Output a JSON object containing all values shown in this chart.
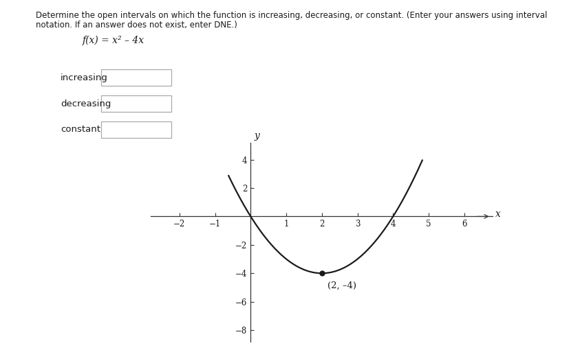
{
  "title_line1": "Determine the open intervals on which the function is increasing, decreasing, or constant. (Enter your answers using interval",
  "title_line2": "notation. If an answer does not exist, enter DNE.)",
  "function_label": "f(x) = x² – 4x",
  "labels": [
    "increasing",
    "decreasing",
    "constant"
  ],
  "xlim": [
    -2.8,
    6.8
  ],
  "ylim": [
    -8.8,
    5.2
  ],
  "xticks": [
    -2,
    -1,
    1,
    2,
    3,
    4,
    5,
    6
  ],
  "yticks": [
    -8,
    -6,
    -4,
    -2,
    2,
    4
  ],
  "vertex_x": 2,
  "vertex_y": -4,
  "vertex_label": "(2, –4)",
  "bg_color": "#ffffff",
  "curve_color": "#1a1a1a",
  "axis_color": "#333333",
  "text_color": "#1a1a1a",
  "title_fontsize": 8.5,
  "func_fontsize": 10,
  "label_fontsize": 9.5,
  "tick_fontsize": 8.5,
  "axis_label_fontsize": 10,
  "axis_label_x": "x",
  "axis_label_y": "y"
}
